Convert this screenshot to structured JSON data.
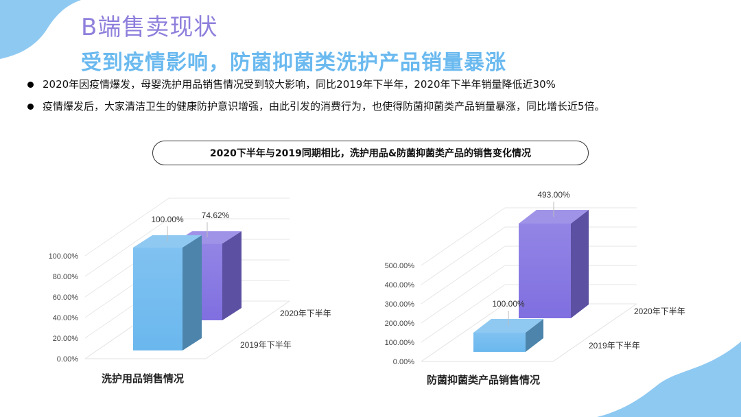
{
  "page": {
    "title": "B端售卖现状",
    "subtitle": "受到疫情影响，防菌抑菌类洗护产品销量暴涨",
    "bullets": [
      "2020年因疫情爆发，母婴洗护用品销售情况受到较大影响，同比2019年下半年，2020年下半年销量降低近30%",
      "疫情爆发后，大家清洁卫生的健康防护意识增强，由此引发的消费行为，也使得防菌抑菌类产品销量暴涨，同比增长近5倍。"
    ],
    "section_title": "2020下半年与2019同期相比，洗护用品&防菌抑菌类产品的销售变化情况"
  },
  "colors": {
    "title": "#8f7fdc",
    "subtitle": "#6ab9ef",
    "bar_2019": "#6ab7ee",
    "bar_2020": "#7f6fe0",
    "decor": "#8ec9f2"
  },
  "chart_data": [
    {
      "type": "bar",
      "title": "洗护用品销售情况",
      "categories": [
        "2019年下半年",
        "2020年下半年"
      ],
      "values": [
        100,
        74.62
      ],
      "labels": [
        "100.00%",
        "74.62%"
      ],
      "yticks": [
        "0.00%",
        "20.00%",
        "40.00%",
        "60.00%",
        "80.00%",
        "100.00%"
      ],
      "ylim": [
        0,
        100
      ],
      "unit": "%"
    },
    {
      "type": "bar",
      "title": "防菌抑菌类产品销售情况",
      "categories": [
        "2019年下半年",
        "2020年下半年"
      ],
      "values": [
        100,
        493
      ],
      "labels": [
        "100.00%",
        "493.00%"
      ],
      "yticks": [
        "0.00%",
        "100.00%",
        "200.00%",
        "300.00%",
        "400.00%",
        "500.00%"
      ],
      "ylim": [
        0,
        500
      ],
      "unit": "%"
    }
  ]
}
